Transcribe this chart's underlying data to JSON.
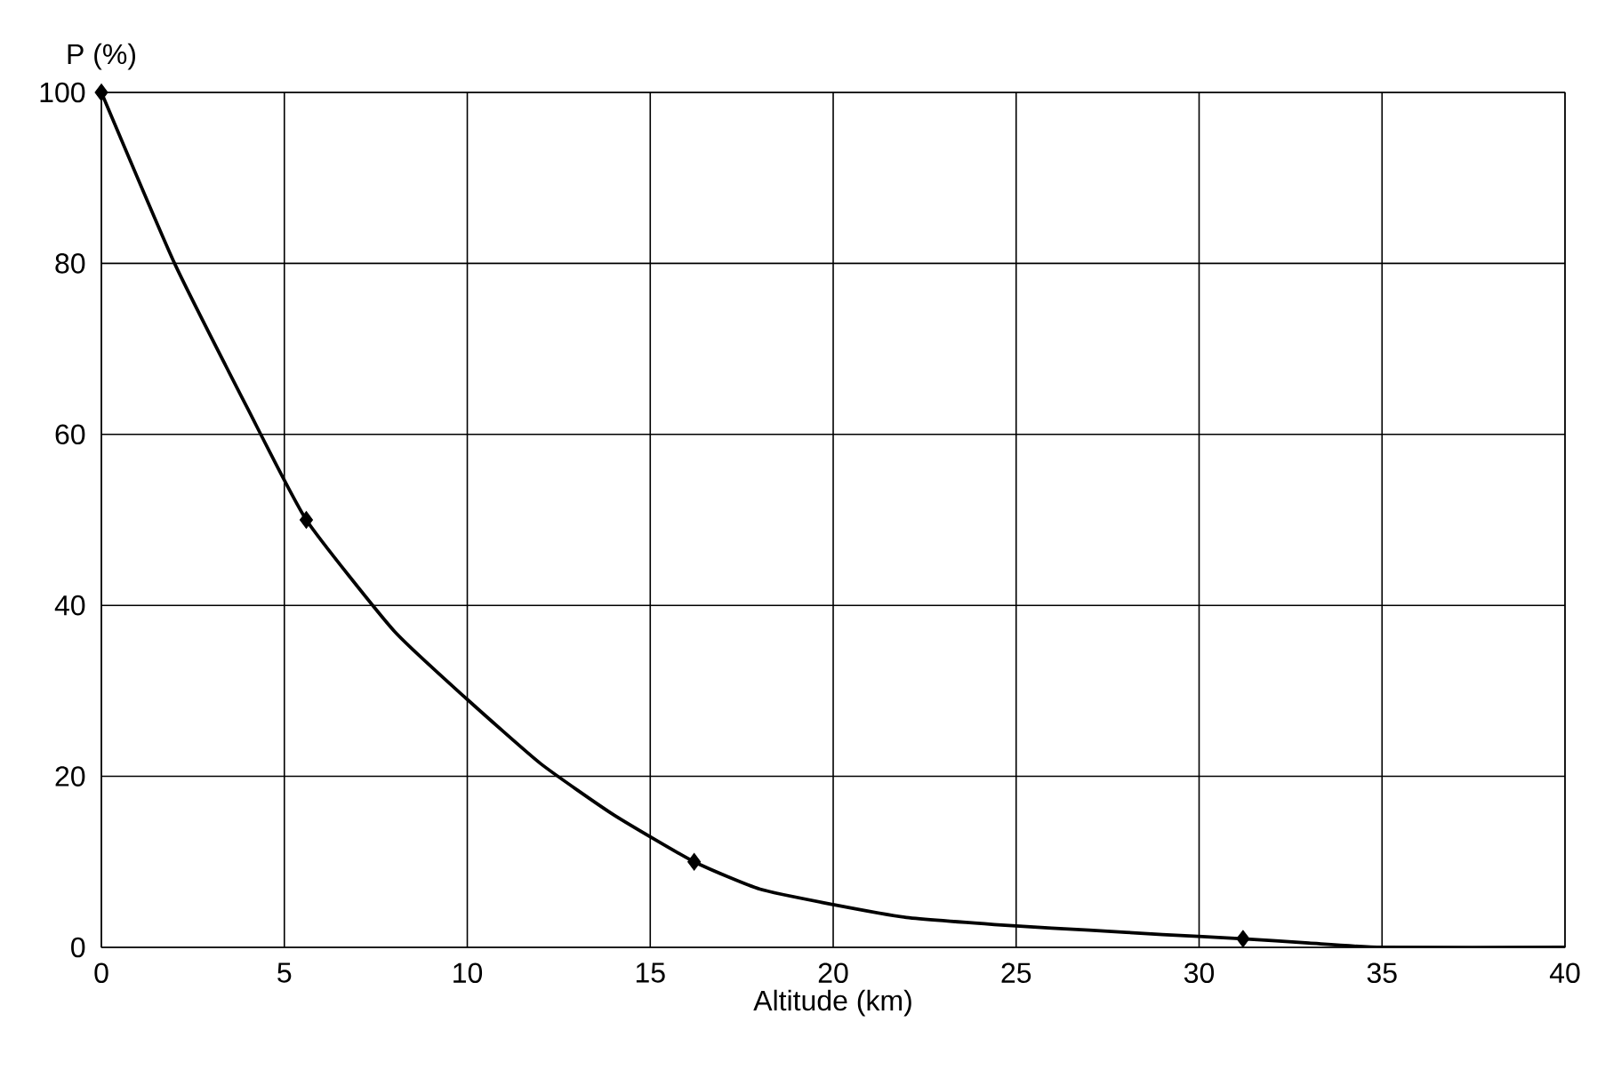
{
  "chart_data": {
    "type": "line",
    "xlabel": "Altitude (km)",
    "ylabel": "P (%)",
    "xlim": [
      0,
      40
    ],
    "xticks": [
      0,
      5,
      10,
      15,
      20,
      25,
      30,
      35,
      40
    ],
    "ylim": [
      0,
      100
    ],
    "yticks": [
      0,
      20,
      40,
      60,
      80,
      100
    ],
    "grid": true,
    "line_style": "solid",
    "series": [
      {
        "color": "#000000",
        "marker": "none",
        "x": [
          0,
          2,
          4,
          5.6,
          8,
          10,
          12,
          14,
          16.2,
          18,
          20,
          22,
          25,
          27,
          29,
          31.2,
          33,
          35,
          40
        ],
        "values": [
          100,
          80,
          63,
          50,
          37,
          29,
          21.5,
          15.5,
          10,
          6.8,
          5,
          3.5,
          2.5,
          2,
          1.5,
          1,
          0.5,
          0,
          0
        ]
      },
      {
        "type": "scatter",
        "color": "#000000",
        "marker": "diamond",
        "x": [
          0,
          5.6,
          16.2,
          31.2
        ],
        "values": [
          100,
          50,
          10,
          1
        ]
      }
    ]
  }
}
